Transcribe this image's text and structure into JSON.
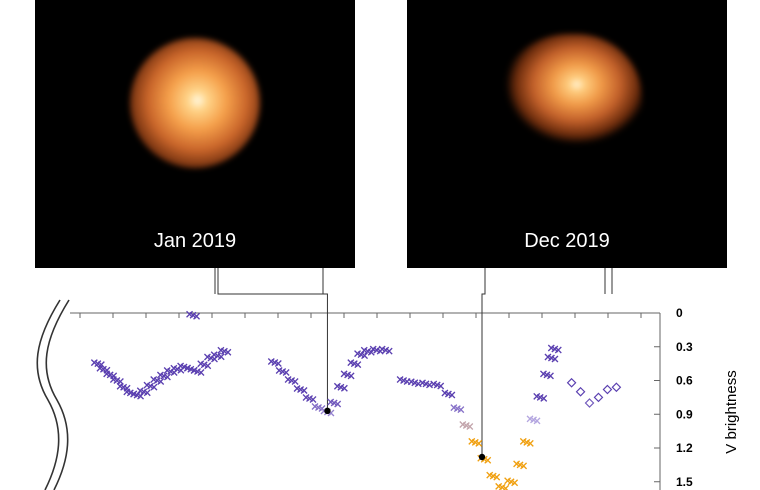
{
  "panels": [
    {
      "label": "Jan 2019"
    },
    {
      "label": "Dec 2019"
    }
  ],
  "chart_data": {
    "type": "scatter",
    "title": "",
    "xlabel": "",
    "ylabel": "V brightness",
    "y_inverted": true,
    "ylim": [
      0,
      1.6
    ],
    "yticks": [
      "0",
      "0.3",
      "0.6",
      "0.9",
      "1.2",
      "1.5"
    ],
    "x_ticks_unlabeled": true,
    "colors": {
      "purple": "#5a3fb0",
      "lavender": "#b4a6e0",
      "orange": "#f0a010"
    },
    "series": [
      {
        "marker": "x",
        "points": [
          [
            0.7,
            0.45
          ],
          [
            1.2,
            0.5
          ],
          [
            1.8,
            0.55
          ],
          [
            2.4,
            0.6
          ],
          [
            3.0,
            0.66
          ],
          [
            3.6,
            0.71
          ],
          [
            4.2,
            0.73
          ],
          [
            4.8,
            0.7
          ],
          [
            5.4,
            0.65
          ],
          [
            6.0,
            0.6
          ],
          [
            6.6,
            0.56
          ],
          [
            7.2,
            0.52
          ],
          [
            7.8,
            0.5
          ],
          [
            8.4,
            0.48
          ],
          [
            9.0,
            0.5
          ],
          [
            9.6,
            0.52
          ],
          [
            10.2,
            0.46
          ],
          [
            10.8,
            0.4
          ],
          [
            11.4,
            0.38
          ],
          [
            12.0,
            0.34
          ],
          [
            9.2,
            0.02
          ]
        ]
      },
      {
        "marker": "x",
        "points": [
          [
            16.5,
            0.44
          ],
          [
            17.2,
            0.52
          ],
          [
            18.0,
            0.6
          ],
          [
            18.8,
            0.68
          ],
          [
            19.6,
            0.76
          ],
          [
            20.4,
            0.84
          ],
          [
            21.2,
            0.88
          ],
          [
            21.8,
            0.8
          ],
          [
            22.4,
            0.66
          ],
          [
            23.0,
            0.55
          ],
          [
            23.6,
            0.45
          ],
          [
            24.2,
            0.37
          ],
          [
            24.8,
            0.34
          ],
          [
            25.6,
            0.33
          ],
          [
            26.4,
            0.33
          ]
        ]
      },
      {
        "marker": "x",
        "points": [
          [
            28.0,
            0.6
          ],
          [
            29.0,
            0.62
          ],
          [
            30.0,
            0.63
          ],
          [
            31.0,
            0.64
          ],
          [
            32.0,
            0.72
          ],
          [
            32.8,
            0.85
          ],
          [
            33.6,
            1.0
          ],
          [
            34.4,
            1.15
          ],
          [
            35.2,
            1.3
          ],
          [
            36.0,
            1.45
          ],
          [
            36.8,
            1.55
          ],
          [
            37.6,
            1.5
          ],
          [
            38.4,
            1.35
          ],
          [
            39.0,
            1.15
          ],
          [
            39.6,
            0.95
          ],
          [
            40.2,
            0.75
          ],
          [
            40.8,
            0.55
          ],
          [
            41.2,
            0.4
          ],
          [
            41.5,
            0.32
          ]
        ]
      },
      {
        "marker": "diamond",
        "points": [
          [
            43.0,
            0.62
          ],
          [
            43.8,
            0.7
          ],
          [
            44.6,
            0.8
          ],
          [
            45.4,
            0.75
          ],
          [
            46.2,
            0.68
          ],
          [
            47.0,
            0.66
          ]
        ]
      }
    ],
    "highlighted_points": [
      {
        "x": 21.2,
        "y": 0.87,
        "panel": "Jan 2019"
      },
      {
        "x": 35.0,
        "y": 1.28,
        "panel": "Dec 2019"
      }
    ],
    "xlim": [
      0,
      50
    ]
  }
}
